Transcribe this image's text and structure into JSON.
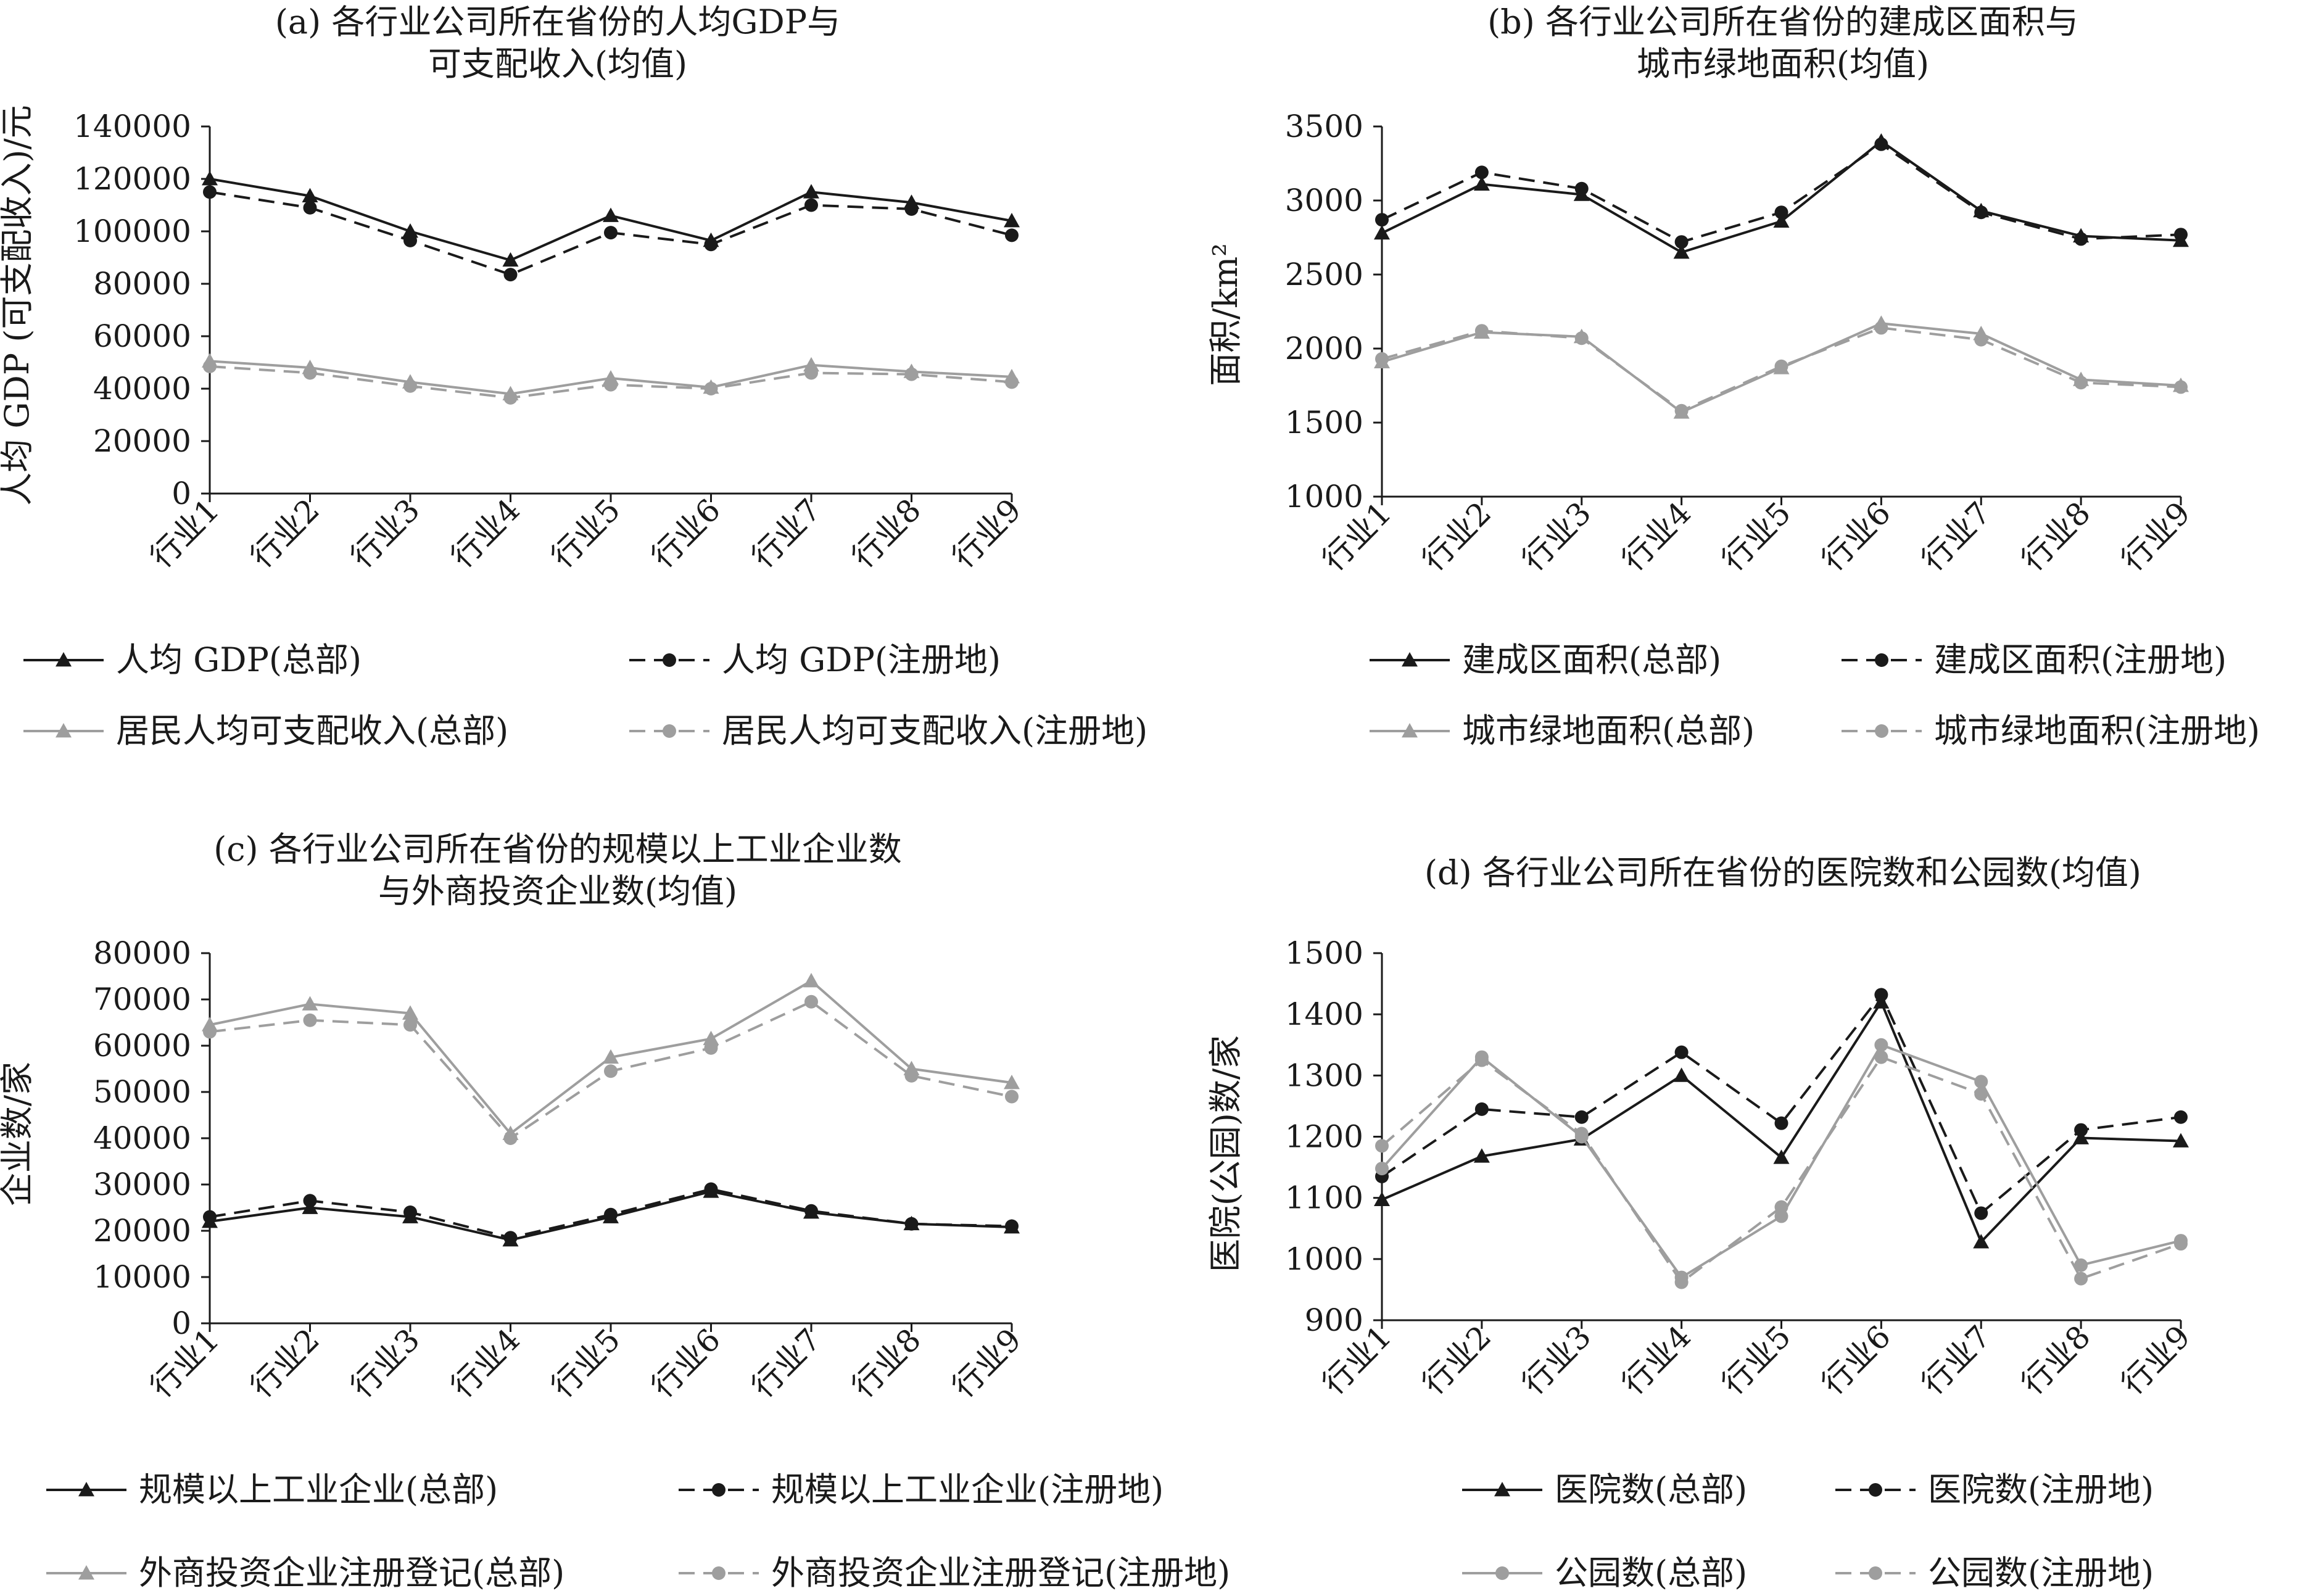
{
  "chart_data": [
    {
      "id": "a",
      "type": "line",
      "title_lines": [
        "(a) 各行业公司所在省份的人均GDP与",
        "可支配收入(均值)"
      ],
      "ylabel": "人均 GDP (可支配收入)/元",
      "xlabel": "",
      "categories": [
        "行业1",
        "行业2",
        "行业3",
        "行业4",
        "行业5",
        "行业6",
        "行业7",
        "行业8",
        "行业9"
      ],
      "ylim": [
        0,
        140000
      ],
      "yticks": [
        0,
        20000,
        40000,
        60000,
        80000,
        100000,
        120000,
        140000
      ],
      "series": [
        {
          "name": "人均 GDP(总部)",
          "color": "#1a1a1a",
          "dash": "solid",
          "marker": "triangle",
          "values": [
            120000,
            113500,
            100000,
            89000,
            106000,
            96500,
            115000,
            111000,
            104000
          ]
        },
        {
          "name": "人均 GDP(注册地)",
          "color": "#1a1a1a",
          "dash": "dashed",
          "marker": "circle",
          "values": [
            115000,
            109000,
            96500,
            83500,
            99500,
            95000,
            110000,
            108500,
            98500
          ]
        },
        {
          "name": "居民人均可支配收入(总部)",
          "color": "#9e9e9e",
          "dash": "solid",
          "marker": "triangle",
          "values": [
            50500,
            48000,
            42500,
            38000,
            44000,
            40500,
            49000,
            46500,
            44500
          ]
        },
        {
          "name": "居民人均可支配收入(注册地)",
          "color": "#9e9e9e",
          "dash": "dashed",
          "marker": "circle",
          "values": [
            48500,
            46000,
            41000,
            36500,
            41500,
            40000,
            46000,
            45500,
            42500
          ]
        }
      ],
      "legend_position": "bottom"
    },
    {
      "id": "b",
      "type": "line",
      "title_lines": [
        "(b) 各行业公司所在省份的建成区面积与",
        "城市绿地面积(均值)"
      ],
      "ylabel": "面积/km²",
      "xlabel": "",
      "categories": [
        "行业1",
        "行业2",
        "行业3",
        "行业4",
        "行业5",
        "行业6",
        "行业7",
        "行业8",
        "行业9"
      ],
      "ylim": [
        1000,
        3500
      ],
      "yticks": [
        1000,
        1500,
        2000,
        2500,
        3000,
        3500
      ],
      "series": [
        {
          "name": "建成区面积(总部)",
          "color": "#1a1a1a",
          "dash": "solid",
          "marker": "triangle",
          "values": [
            2780,
            3110,
            3040,
            2650,
            2860,
            3400,
            2930,
            2760,
            2730
          ]
        },
        {
          "name": "建成区面积(注册地)",
          "color": "#1a1a1a",
          "dash": "dashed",
          "marker": "circle",
          "values": [
            2870,
            3190,
            3080,
            2720,
            2920,
            3380,
            2920,
            2740,
            2770
          ]
        },
        {
          "name": "城市绿地面积(总部)",
          "color": "#9e9e9e",
          "dash": "solid",
          "marker": "triangle",
          "values": [
            1910,
            2110,
            2080,
            1570,
            1870,
            2170,
            2100,
            1790,
            1750
          ]
        },
        {
          "name": "城市绿地面积(注册地)",
          "color": "#9e9e9e",
          "dash": "dashed",
          "marker": "circle",
          "values": [
            1930,
            2120,
            2070,
            1580,
            1880,
            2140,
            2060,
            1770,
            1740
          ]
        }
      ],
      "legend_position": "bottom"
    },
    {
      "id": "c",
      "type": "line",
      "title_lines": [
        "(c) 各行业公司所在省份的规模以上工业企业数",
        "与外商投资企业数(均值)"
      ],
      "ylabel": "企业数/家",
      "xlabel": "",
      "categories": [
        "行业1",
        "行业2",
        "行业3",
        "行业4",
        "行业5",
        "行业6",
        "行业7",
        "行业8",
        "行业9"
      ],
      "ylim": [
        0,
        80000
      ],
      "yticks": [
        0,
        10000,
        20000,
        30000,
        40000,
        50000,
        60000,
        70000,
        80000
      ],
      "series": [
        {
          "name": "规模以上工业企业(总部)",
          "color": "#1a1a1a",
          "dash": "solid",
          "marker": "triangle",
          "values": [
            22000,
            25000,
            23000,
            18000,
            23000,
            28500,
            24000,
            21500,
            20800
          ]
        },
        {
          "name": "规模以上工业企业(注册地)",
          "color": "#1a1a1a",
          "dash": "dashed",
          "marker": "circle",
          "values": [
            23000,
            26500,
            24000,
            18500,
            23500,
            29000,
            24300,
            21500,
            21000
          ]
        },
        {
          "name": "外商投资企业注册登记(总部)",
          "color": "#9e9e9e",
          "dash": "solid",
          "marker": "triangle",
          "values": [
            64500,
            69000,
            67000,
            41000,
            57500,
            61500,
            74000,
            55000,
            52000
          ]
        },
        {
          "name": "外商投资企业注册登记(注册地)",
          "color": "#9e9e9e",
          "dash": "dashed",
          "marker": "circle",
          "values": [
            63000,
            65500,
            64500,
            40000,
            54500,
            59500,
            69500,
            53500,
            49000
          ]
        }
      ],
      "legend_position": "bottom"
    },
    {
      "id": "d",
      "type": "line",
      "title_lines": [
        "(d) 各行业公司所在省份的医院数和公园数(均值)"
      ],
      "ylabel": "医院(公园)数/家",
      "xlabel": "",
      "categories": [
        "行业1",
        "行业2",
        "行业3",
        "行业4",
        "行业5",
        "行业6",
        "行业7",
        "行业8",
        "行业9"
      ],
      "ylim": [
        900,
        1500
      ],
      "yticks": [
        900,
        1000,
        1100,
        1200,
        1300,
        1400,
        1500
      ],
      "series": [
        {
          "name": "医院数(总部)",
          "color": "#1a1a1a",
          "dash": "solid",
          "marker": "triangle",
          "values": [
            1097,
            1168,
            1196,
            1300,
            1166,
            1420,
            1028,
            1198,
            1193
          ]
        },
        {
          "name": "医院数(注册地)",
          "color": "#1a1a1a",
          "dash": "dashed",
          "marker": "circle",
          "values": [
            1135,
            1245,
            1232,
            1338,
            1222,
            1432,
            1075,
            1211,
            1232
          ]
        },
        {
          "name": "公园数(总部)",
          "color": "#9e9e9e",
          "dash": "solid",
          "marker": "circle",
          "values": [
            1148,
            1330,
            1200,
            970,
            1070,
            1350,
            1290,
            990,
            1030
          ]
        },
        {
          "name": "公园数(注册地)",
          "color": "#9e9e9e",
          "dash": "dashed",
          "marker": "circle",
          "values": [
            1185,
            1325,
            1205,
            962,
            1085,
            1330,
            1270,
            968,
            1025
          ]
        }
      ],
      "legend_position": "bottom"
    }
  ]
}
